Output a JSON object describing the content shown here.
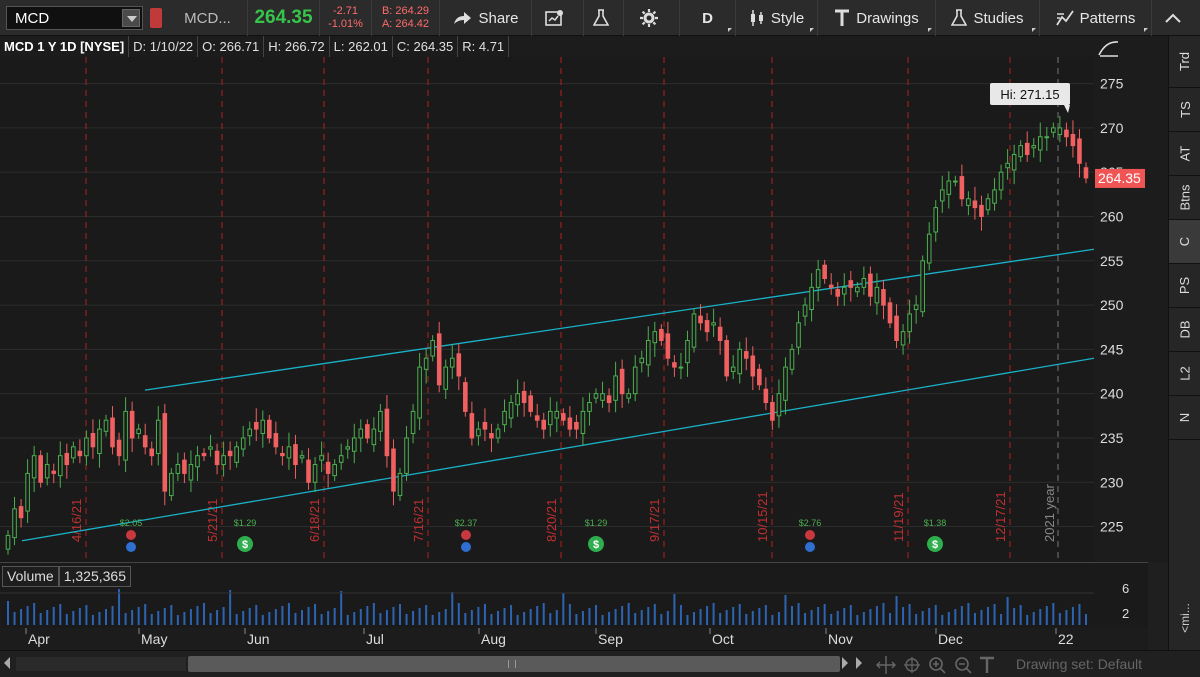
{
  "toolbar": {
    "symbol": "MCD",
    "desc": "MCD...",
    "last": "264.35",
    "net_change": "-2.71",
    "pct_change": "-1.01%",
    "bid": "B: 264.29",
    "ask": "A: 264.42",
    "share_label": "Share",
    "aggregation": "D",
    "style_label": "Style",
    "drawings_label": "Drawings",
    "studies_label": "Studies",
    "patterns_label": "Patterns"
  },
  "ohlc_bar": {
    "title": "MCD 1 Y 1D [NYSE]",
    "date": "D: 1/10/22",
    "open": "O: 266.71",
    "high": "H: 266.72",
    "low": "L: 262.01",
    "close": "C: 264.35",
    "range": "R: 4.71"
  },
  "chart": {
    "hi_label": "Hi: 271.15",
    "last_badge": "264.35",
    "year_label": "2021 year",
    "colors": {
      "up": "#4caf50",
      "down": "#f06060",
      "channel": "#19b2c9",
      "marker": "#b02020"
    }
  },
  "chart_data": {
    "type": "candlestick",
    "ylim": [
      221,
      278
    ],
    "y_ticks": [
      225,
      230,
      235,
      240,
      245,
      250,
      255,
      260,
      265,
      270,
      275
    ],
    "date_markers": [
      "4/16/21",
      "5/21/21",
      "6/18/21",
      "7/16/21",
      "8/20/21",
      "9/17/21",
      "10/15/21",
      "11/19/21",
      "12/17/21"
    ],
    "x_months": [
      "Apr",
      "May",
      "Jun",
      "Jul",
      "Aug",
      "Sep",
      "Oct",
      "Nov",
      "Dec",
      "22"
    ],
    "dividends": [
      "$2.05",
      "$1.29",
      "$2.37",
      "$1.29",
      "$2.76",
      "$1.38"
    ],
    "closes": [
      224,
      227,
      226,
      231,
      233,
      230,
      232,
      231,
      233,
      232,
      234,
      233,
      235,
      234,
      236,
      237,
      234,
      233,
      238,
      235,
      236,
      234,
      233,
      237,
      229,
      231,
      232,
      231,
      232,
      233,
      233,
      234,
      232,
      233,
      233,
      234,
      235,
      236,
      236,
      237,
      235,
      234,
      233,
      234,
      232,
      233,
      230,
      232,
      233,
      231,
      232,
      233,
      234,
      235,
      236,
      235,
      236,
      238,
      233,
      229,
      231,
      235,
      238,
      243,
      244,
      246,
      241,
      243,
      244,
      242,
      238,
      235,
      236,
      236,
      235,
      236,
      238,
      239,
      240,
      239,
      238,
      237,
      236,
      238,
      238,
      237,
      236,
      236,
      238,
      239,
      240,
      240,
      239,
      242,
      240,
      240,
      243,
      244,
      246,
      247,
      246,
      244,
      243,
      243,
      246,
      249,
      248,
      247,
      248,
      246,
      242,
      243,
      245,
      244,
      242,
      241,
      239,
      237,
      240,
      243,
      245,
      248,
      250,
      252,
      254,
      253,
      252,
      251,
      252,
      252,
      252,
      253,
      251,
      252,
      250,
      248,
      246,
      247,
      249,
      250,
      255,
      258,
      261,
      263,
      264,
      264,
      262,
      262,
      261,
      260,
      262,
      263,
      265,
      266,
      267,
      268,
      267,
      268,
      269,
      269,
      270,
      270,
      269,
      268,
      266,
      264.35
    ],
    "series": [
      {
        "name": "MCD",
        "values": "see closes"
      }
    ]
  },
  "volume": {
    "label": "Volume",
    "value": "1,325,365",
    "ticks": [
      "6",
      "2"
    ],
    "unit_label": "<mi..."
  },
  "right_panel": {
    "tabs": [
      "Trd",
      "TS",
      "AT",
      "Btns",
      "C",
      "PS",
      "DB",
      "L2",
      "N"
    ]
  },
  "footer": {
    "drawing_set": "Drawing set: Default"
  }
}
